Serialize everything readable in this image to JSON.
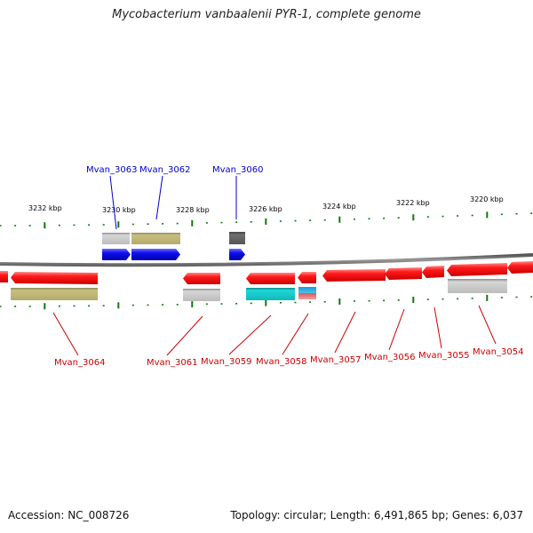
{
  "title": "Mycobacterium vanbaalenii PYR-1, complete genome",
  "footer": {
    "accession": "Accession: NC_008726",
    "stats": "Topology: circular; Length: 6,491,865 bp; Genes: 6,037"
  },
  "scale_labels": [
    "3232 kbp",
    "3230 kbp",
    "3228 kbp",
    "3226 kbp",
    "3224 kbp",
    "3222 kbp",
    "3220 kbp"
  ],
  "genes_top": [
    "Mvan_3063",
    "Mvan_3062",
    "Mvan_3060"
  ],
  "genes_bottom": [
    "Mvan_3064",
    "Mvan_3061",
    "Mvan_3059",
    "Mvan_3058",
    "Mvan_3057",
    "Mvan_3056",
    "Mvan_3055",
    "Mvan_3054"
  ],
  "colors": {
    "forward_cds": "#1010ee",
    "reverse_cds": "#ee1111",
    "backbone": "#808080",
    "tick": "#117711",
    "label_forward": "#0000cc",
    "label_reverse": "#cc0000",
    "olive_feature": "#c2b878",
    "gray_feature": "#c8c8c8",
    "dark_feature": "#666666",
    "cyan_feature": "#18cccc",
    "pink_feature": "#f08080"
  }
}
